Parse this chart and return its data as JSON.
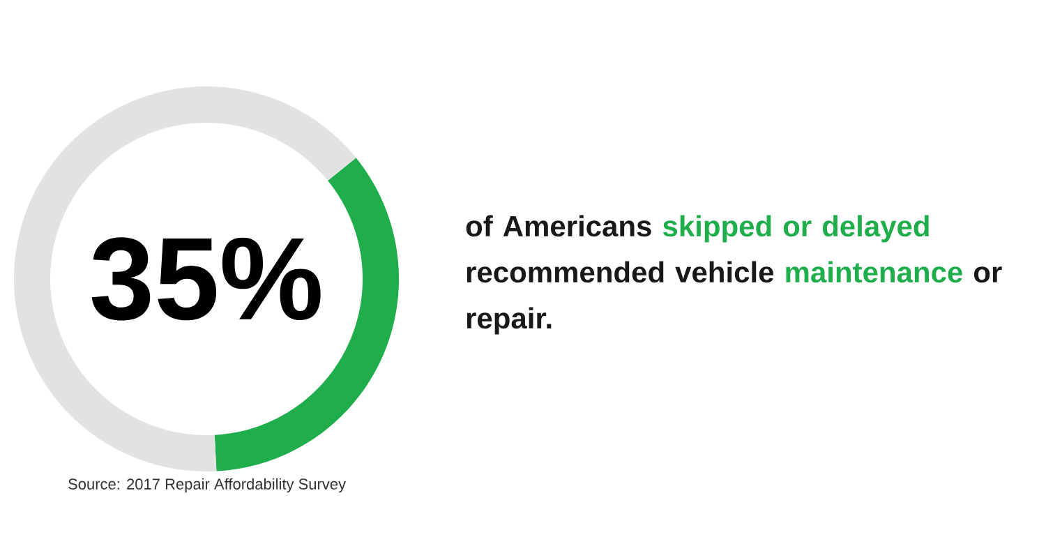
{
  "chart_data": {
    "type": "donut",
    "categories": [
      null,
      null
    ],
    "values": [
      35,
      65
    ],
    "colors": [
      "#1fae4b",
      "#e1e2e1"
    ],
    "title": "35%",
    "annotations": [
      "of Americans ",
      "skipped or delayed",
      " recommended vehicle ",
      "maintenance",
      " or repair.",
      "Source: 2017 Repair Affordability Survey"
    ]
  }
}
